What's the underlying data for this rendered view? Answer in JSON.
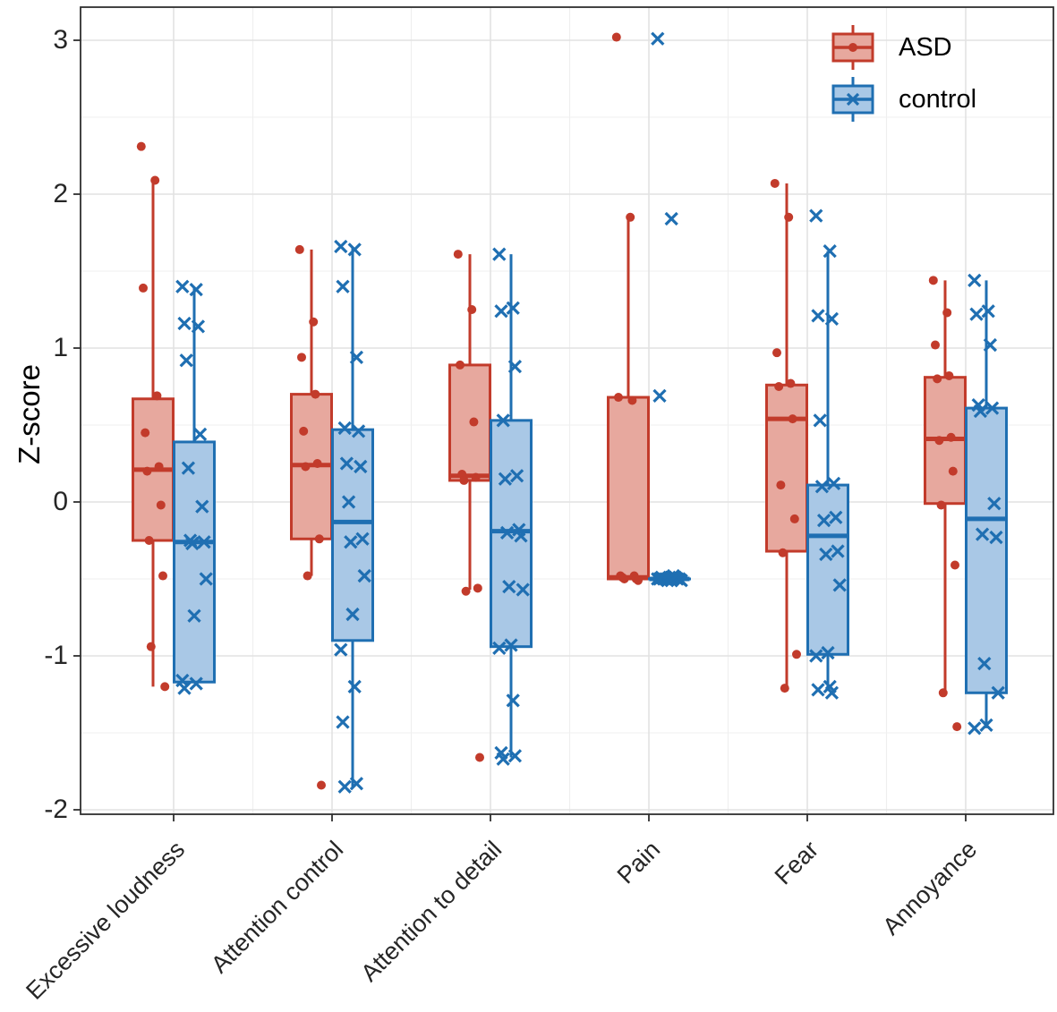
{
  "chart_data": {
    "type": "grouped_boxplot_with_jitter",
    "title": "",
    "ylabel": "Z-score",
    "ylim": [
      -2.03,
      3.22
    ],
    "y_major_ticks": [
      3,
      2,
      1,
      0,
      -1,
      -2
    ],
    "grid": {
      "major": true,
      "minor": true
    },
    "legend_position": "top-right-inside",
    "panel_border_color": "#2f2f2f",
    "grid_major_color": "#e2e2e2",
    "grid_minor_color": "#efefef",
    "categories": [
      "Excessive loudness",
      "Attention control",
      "Attention to detail",
      "Pain",
      "Fear",
      "Annoyance"
    ],
    "groups": [
      {
        "name": "ASD",
        "marker": "dot",
        "stroke": "#c23b2b",
        "fill": "#e7a89e"
      },
      {
        "name": "control",
        "marker": "x",
        "stroke": "#1f6fb2",
        "fill": "#a9c8e6"
      }
    ],
    "series": [
      {
        "category": "Excessive loudness",
        "ASD": {
          "box": {
            "q1": -0.25,
            "median": 0.21,
            "q3": 0.67,
            "whisker_low": -1.2,
            "whisker_high": 2.09
          },
          "points": [
            2.31,
            2.09,
            1.39,
            0.69,
            0.45,
            0.23,
            0.2,
            -0.02,
            -0.25,
            -0.48,
            -0.94,
            -1.2
          ]
        },
        "control": {
          "box": {
            "q1": -1.17,
            "median": -0.26,
            "q3": 0.39,
            "whisker_low": -1.17,
            "whisker_high": 1.39
          },
          "points": [
            1.4,
            1.38,
            1.16,
            1.14,
            0.92,
            0.44,
            0.22,
            -0.03,
            -0.25,
            -0.26,
            -0.27,
            -0.5,
            -0.74,
            -1.16,
            -1.18,
            -1.21
          ]
        }
      },
      {
        "category": "Attention control",
        "ASD": {
          "box": {
            "q1": -0.24,
            "median": 0.24,
            "q3": 0.7,
            "whisker_low": -0.48,
            "whisker_high": 1.64
          },
          "points": [
            1.64,
            1.17,
            0.94,
            0.7,
            0.46,
            0.25,
            0.23,
            -0.24,
            -0.48,
            -1.84
          ]
        },
        "control": {
          "box": {
            "q1": -0.9,
            "median": -0.13,
            "q3": 0.47,
            "whisker_low": -1.85,
            "whisker_high": 1.65
          },
          "points": [
            1.66,
            1.64,
            1.4,
            0.94,
            0.48,
            0.46,
            0.25,
            0.23,
            0.0,
            -0.24,
            -0.26,
            -0.48,
            -0.73,
            -0.96,
            -1.2,
            -1.43,
            -1.83,
            -1.85
          ]
        }
      },
      {
        "category": "Attention to detail",
        "ASD": {
          "box": {
            "q1": 0.14,
            "median": 0.17,
            "q3": 0.89,
            "whisker_low": -0.57,
            "whisker_high": 1.61
          },
          "points": [
            1.61,
            1.25,
            0.89,
            0.52,
            0.18,
            0.16,
            0.14,
            -0.56,
            -0.58,
            -1.66
          ]
        },
        "control": {
          "box": {
            "q1": -0.94,
            "median": -0.19,
            "q3": 0.53,
            "whisker_low": -1.66,
            "whisker_high": 1.61
          },
          "points": [
            1.61,
            1.26,
            1.24,
            0.88,
            0.53,
            0.17,
            0.15,
            -0.18,
            -0.2,
            -0.22,
            -0.55,
            -0.57,
            -0.93,
            -0.95,
            -1.29,
            -1.63,
            -1.65,
            -1.67
          ]
        }
      },
      {
        "category": "Pain",
        "ASD": {
          "box": {
            "q1": -0.5,
            "median": -0.49,
            "q3": 0.68,
            "whisker_low": -0.5,
            "whisker_high": 1.85
          },
          "points": [
            3.02,
            1.85,
            0.68,
            0.66,
            -0.48,
            -0.48,
            -0.49,
            -0.5,
            -0.5,
            -0.51
          ]
        },
        "control": {
          "box": {
            "q1": -0.5,
            "median": -0.5,
            "q3": -0.5,
            "whisker_low": -0.5,
            "whisker_high": -0.5
          },
          "points": [
            3.01,
            1.84,
            0.69,
            -0.48,
            -0.49,
            -0.49,
            -0.5,
            -0.5,
            -0.5,
            -0.5,
            -0.51,
            -0.51,
            -0.49,
            -0.5,
            -0.51,
            -0.5
          ]
        }
      },
      {
        "category": "Fear",
        "ASD": {
          "box": {
            "q1": -0.32,
            "median": 0.54,
            "q3": 0.76,
            "whisker_low": -1.21,
            "whisker_high": 2.07
          },
          "points": [
            2.07,
            1.85,
            0.97,
            0.77,
            0.75,
            0.54,
            0.11,
            -0.11,
            -0.33,
            -0.99,
            -1.21
          ]
        },
        "control": {
          "box": {
            "q1": -0.99,
            "median": -0.22,
            "q3": 0.11,
            "whisker_low": -1.22,
            "whisker_high": 1.63
          },
          "points": [
            1.86,
            1.63,
            1.21,
            1.19,
            0.53,
            0.12,
            0.1,
            -0.1,
            -0.12,
            -0.32,
            -0.34,
            -0.54,
            -0.98,
            -1.0,
            -1.2,
            -1.22,
            -1.24
          ]
        }
      },
      {
        "category": "Annoyance",
        "ASD": {
          "box": {
            "q1": -0.01,
            "median": 0.41,
            "q3": 0.81,
            "whisker_low": -1.24,
            "whisker_high": 1.44
          },
          "points": [
            1.44,
            1.23,
            1.02,
            0.82,
            0.8,
            0.42,
            0.4,
            0.2,
            -0.02,
            -0.41,
            -1.24,
            -1.46
          ]
        },
        "control": {
          "box": {
            "q1": -1.24,
            "median": -0.11,
            "q3": 0.61,
            "whisker_low": -1.47,
            "whisker_high": 1.44
          },
          "points": [
            1.44,
            1.24,
            1.22,
            1.02,
            0.63,
            0.61,
            0.59,
            -0.01,
            -0.21,
            -0.23,
            -1.05,
            -1.24,
            -1.45,
            -1.47
          ]
        }
      }
    ]
  }
}
